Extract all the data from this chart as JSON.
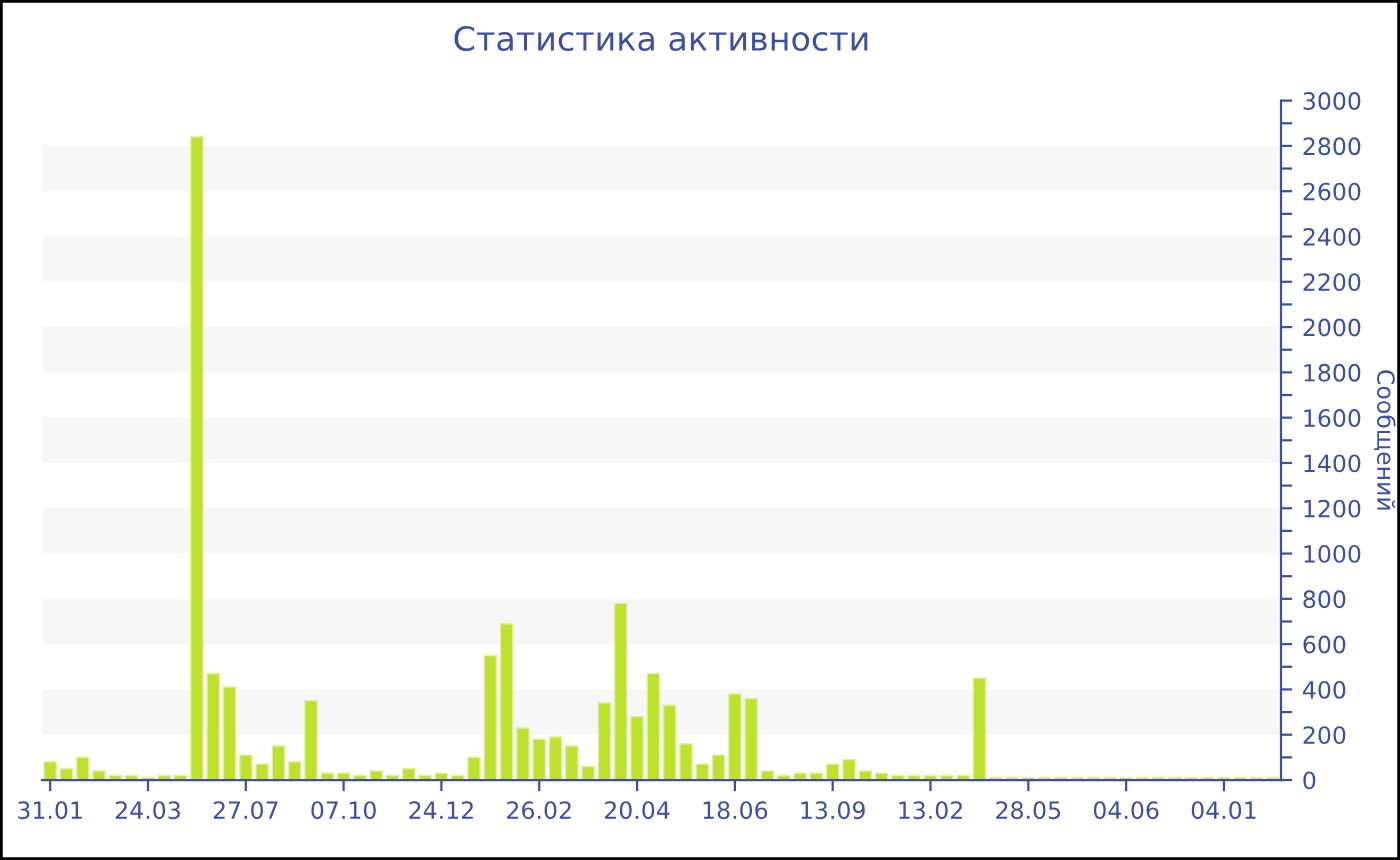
{
  "chart_data": {
    "type": "bar",
    "title": "Статистика активности",
    "ylabel": "Сообщений",
    "categories": [
      "31.01",
      null,
      null,
      null,
      null,
      null,
      "24.03",
      null,
      null,
      null,
      null,
      null,
      "27.07",
      null,
      null,
      null,
      null,
      null,
      "07.10",
      null,
      null,
      null,
      null,
      null,
      "24.12",
      null,
      null,
      null,
      null,
      null,
      "26.02",
      null,
      null,
      null,
      null,
      null,
      "20.04",
      null,
      null,
      null,
      null,
      null,
      "18.06",
      null,
      null,
      null,
      null,
      null,
      "13.09",
      null,
      null,
      null,
      null,
      null,
      "13.02",
      null,
      null,
      null,
      null,
      null,
      "28.05",
      null,
      null,
      null,
      null,
      null,
      "04.06",
      null,
      null,
      null,
      null,
      null,
      "04.01",
      null,
      null,
      null
    ],
    "values": [
      80,
      50,
      100,
      40,
      20,
      20,
      10,
      20,
      20,
      2840,
      470,
      410,
      110,
      70,
      150,
      80,
      350,
      30,
      30,
      20,
      40,
      20,
      50,
      20,
      30,
      20,
      100,
      550,
      690,
      230,
      180,
      190,
      150,
      60,
      340,
      780,
      280,
      470,
      330,
      160,
      70,
      110,
      380,
      360,
      40,
      20,
      30,
      30,
      70,
      90,
      40,
      30,
      20,
      20,
      20,
      20,
      20,
      450,
      10,
      10,
      10,
      10,
      10,
      10,
      10,
      10,
      10,
      10,
      10,
      10,
      10,
      10,
      10,
      10,
      10,
      10
    ],
    "color": "#bde22e",
    "ylim": [
      0,
      3000
    ],
    "yticks": [
      0,
      {
        "value": 100,
        "label": null
      },
      200,
      {
        "value": 300,
        "label": null
      },
      400,
      {
        "value": 500,
        "label": null
      },
      600,
      {
        "value": 700,
        "label": null
      },
      800,
      {
        "value": 900,
        "label": null
      },
      1000,
      {
        "value": 1100,
        "label": null
      },
      1200,
      {
        "value": 1300,
        "label": null
      },
      1400,
      {
        "value": 1500,
        "label": null
      },
      1600,
      {
        "value": 1700,
        "label": null
      },
      1800,
      {
        "value": 1900,
        "label": null
      },
      2000,
      {
        "value": 2100,
        "label": null
      },
      2200,
      {
        "value": 2300,
        "label": null
      },
      2400,
      {
        "value": 2500,
        "label": null
      },
      2600,
      {
        "value": 2700,
        "label": null
      },
      2800,
      {
        "value": 2900,
        "label": null
      },
      3000
    ],
    "bands": [
      {
        "axis": "y",
        "from": 200,
        "to": 400,
        "color": "#f7f7f7"
      },
      {
        "axis": "y",
        "from": 600,
        "to": 800,
        "color": "#f7f7f7"
      },
      {
        "axis": "y",
        "from": 1000,
        "to": 1200,
        "color": "#f7f7f7"
      },
      {
        "axis": "y",
        "from": 1400,
        "to": 1600,
        "color": "#f7f7f7"
      },
      {
        "axis": "y",
        "from": 1800,
        "to": 2000,
        "color": "#f7f7f7"
      },
      {
        "axis": "y",
        "from": 2200,
        "to": 2400,
        "color": "#f7f7f7"
      },
      {
        "axis": "y",
        "from": 2600,
        "to": 2800,
        "color": "#f7f7f7"
      }
    ],
    "grid": false
  }
}
